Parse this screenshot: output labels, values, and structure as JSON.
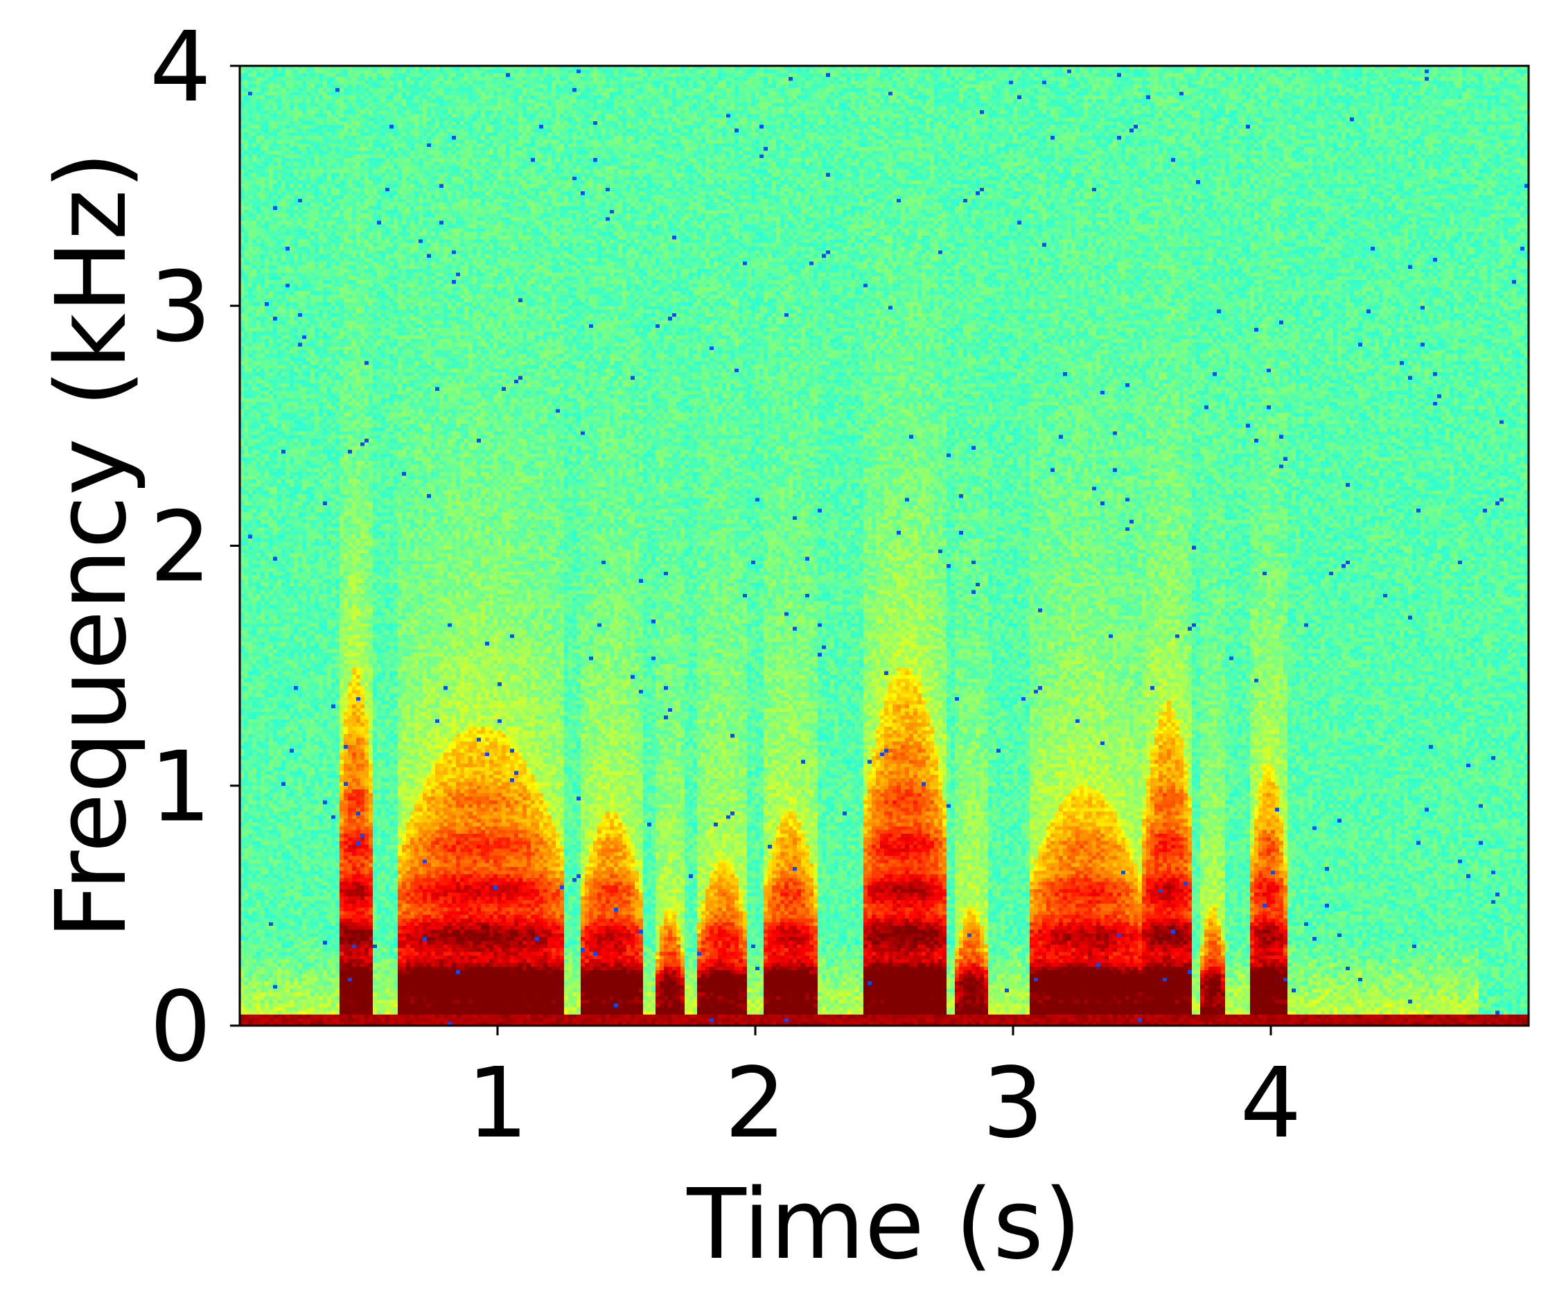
{
  "chart_data": {
    "type": "heatmap",
    "xlabel": "Time (s)",
    "ylabel": "Frequency (kHz)",
    "xlim": [
      0,
      5.0
    ],
    "ylim": [
      0,
      4
    ],
    "xticks": [
      1,
      2,
      3,
      4
    ],
    "xtick_labels": [
      "1",
      "2",
      "3",
      "4"
    ],
    "yticks": [
      0,
      1,
      2,
      3,
      4
    ],
    "ytick_labels": [
      "0",
      "1",
      "2",
      "3",
      "4"
    ],
    "colormap": "jet",
    "colormap_range": [
      "cyan-green (low power)",
      "yellow",
      "orange",
      "dark red (high power)"
    ],
    "grid": false,
    "legend": "none",
    "voiced_segments_s": [
      {
        "start": 0.38,
        "end": 0.52,
        "peak_kHz": 1.5
      },
      {
        "start": 0.62,
        "end": 1.25,
        "peak_kHz": 1.25
      },
      {
        "start": 1.32,
        "end": 1.56,
        "peak_kHz": 0.9
      },
      {
        "start": 1.62,
        "end": 1.72,
        "peak_kHz": 0.5
      },
      {
        "start": 1.78,
        "end": 1.97,
        "peak_kHz": 0.7
      },
      {
        "start": 2.03,
        "end": 2.24,
        "peak_kHz": 0.9
      },
      {
        "start": 2.42,
        "end": 2.74,
        "peak_kHz": 1.5
      },
      {
        "start": 2.78,
        "end": 2.9,
        "peak_kHz": 0.5
      },
      {
        "start": 3.06,
        "end": 3.5,
        "peak_kHz": 1.0
      },
      {
        "start": 3.5,
        "end": 3.7,
        "peak_kHz": 1.35
      },
      {
        "start": 3.73,
        "end": 3.82,
        "peak_kHz": 0.5
      },
      {
        "start": 3.92,
        "end": 4.06,
        "peak_kHz": 1.1
      }
    ],
    "harmonic_f0_kHz": 0.19,
    "noise_floor_band_kHz": [
      0,
      0.15
    ],
    "low_band_end_s": 4.8,
    "colors": {
      "background_low": "#5ef0a8",
      "mid": "#c6f85a",
      "yellow": "#f4f020",
      "orange": "#f99a10",
      "red": "#e0260e",
      "dark_red": "#9a0a0a",
      "outlier_blue": "#2a40e8"
    }
  }
}
